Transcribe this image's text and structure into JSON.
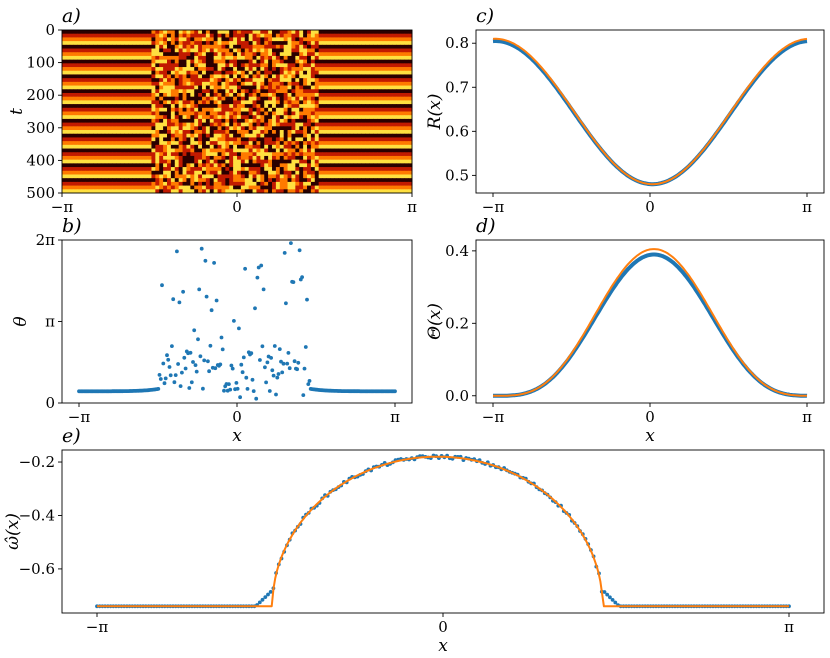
{
  "colors": {
    "blue": "#1f77b4",
    "orange": "#ff7f0e",
    "heat_dark": "#2a0000",
    "heat_red": "#c21a00",
    "heat_orange": "#ff7a00",
    "heat_yellow": "#ffe040"
  },
  "chart_data": [
    {
      "id": "a",
      "panel_label": "a)",
      "type": "heatmap",
      "xlabel": "",
      "ylabel": "t",
      "xlim": [
        -3.14159,
        3.14159
      ],
      "ylim": [
        0,
        500
      ],
      "x_ticks": [
        "−π",
        "0",
        "π"
      ],
      "y_ticks": [
        "0",
        "100",
        "200",
        "300",
        "400",
        "500"
      ],
      "y_tick_values": [
        0,
        100,
        200,
        300,
        400,
        500
      ],
      "colormap": "hot",
      "description_values": {
        "incoherent_region": [
          -1.55,
          1.45
        ]
      }
    },
    {
      "id": "b",
      "panel_label": "b)",
      "type": "scatter",
      "xlabel": "x",
      "ylabel": "θ",
      "xlim": [
        -3.14159,
        3.14159
      ],
      "ylim": [
        0,
        6.28318
      ],
      "x_ticks": [
        "−π",
        "0",
        "π"
      ],
      "y_ticks": [
        "0",
        "π",
        "2π"
      ],
      "y_tick_values": [
        0,
        3.14159,
        6.28318
      ],
      "coherent_left": [
        -1.55,
        0.55
      ],
      "coherent_right": [
        1.45,
        0.55
      ],
      "coherent_min": 0.45
    },
    {
      "id": "c",
      "panel_label": "c)",
      "type": "line",
      "xlabel": "",
      "ylabel": "R(x)",
      "xlim": [
        -3.14159,
        3.14159
      ],
      "ylim": [
        0.46,
        0.83
      ],
      "x_ticks": [
        "−π",
        "0",
        "π"
      ],
      "y_ticks": [
        "0.5",
        "0.6",
        "0.7",
        "0.8"
      ],
      "y_tick_values": [
        0.5,
        0.6,
        0.7,
        0.8
      ],
      "series": [
        {
          "color": "blue",
          "min": 0.48,
          "max": 0.805,
          "x_min": 0.05
        },
        {
          "color": "orange",
          "min": 0.48,
          "max": 0.81,
          "x_min": 0.05
        }
      ]
    },
    {
      "id": "d",
      "panel_label": "d)",
      "type": "line",
      "xlabel": "x",
      "ylabel": "Θ(x)",
      "xlim": [
        -3.14159,
        3.14159
      ],
      "ylim": [
        -0.02,
        0.43
      ],
      "x_ticks": [
        "−π",
        "0",
        "π"
      ],
      "y_ticks": [
        "0.0",
        "0.2",
        "0.4"
      ],
      "y_tick_values": [
        0.0,
        0.2,
        0.4
      ],
      "series": [
        {
          "color": "blue",
          "peak": 0.39,
          "x_peak": 0.08
        },
        {
          "color": "orange",
          "peak": 0.405,
          "x_peak": 0.08
        }
      ]
    },
    {
      "id": "e",
      "panel_label": "e)",
      "type": "scatter",
      "xlabel": "x",
      "ylabel": "ω̂(x)",
      "xlim": [
        -3.14159,
        3.14159
      ],
      "ylim": [
        -0.765,
        -0.155
      ],
      "x_ticks": [
        "−π",
        "0",
        "π"
      ],
      "y_ticks": [
        "−0.2",
        "−0.4",
        "−0.6"
      ],
      "y_tick_values": [
        -0.2,
        -0.4,
        -0.6
      ],
      "plateau": -0.74,
      "arc_top": -0.18,
      "arc_left": -1.55,
      "arc_right": 1.45
    }
  ]
}
